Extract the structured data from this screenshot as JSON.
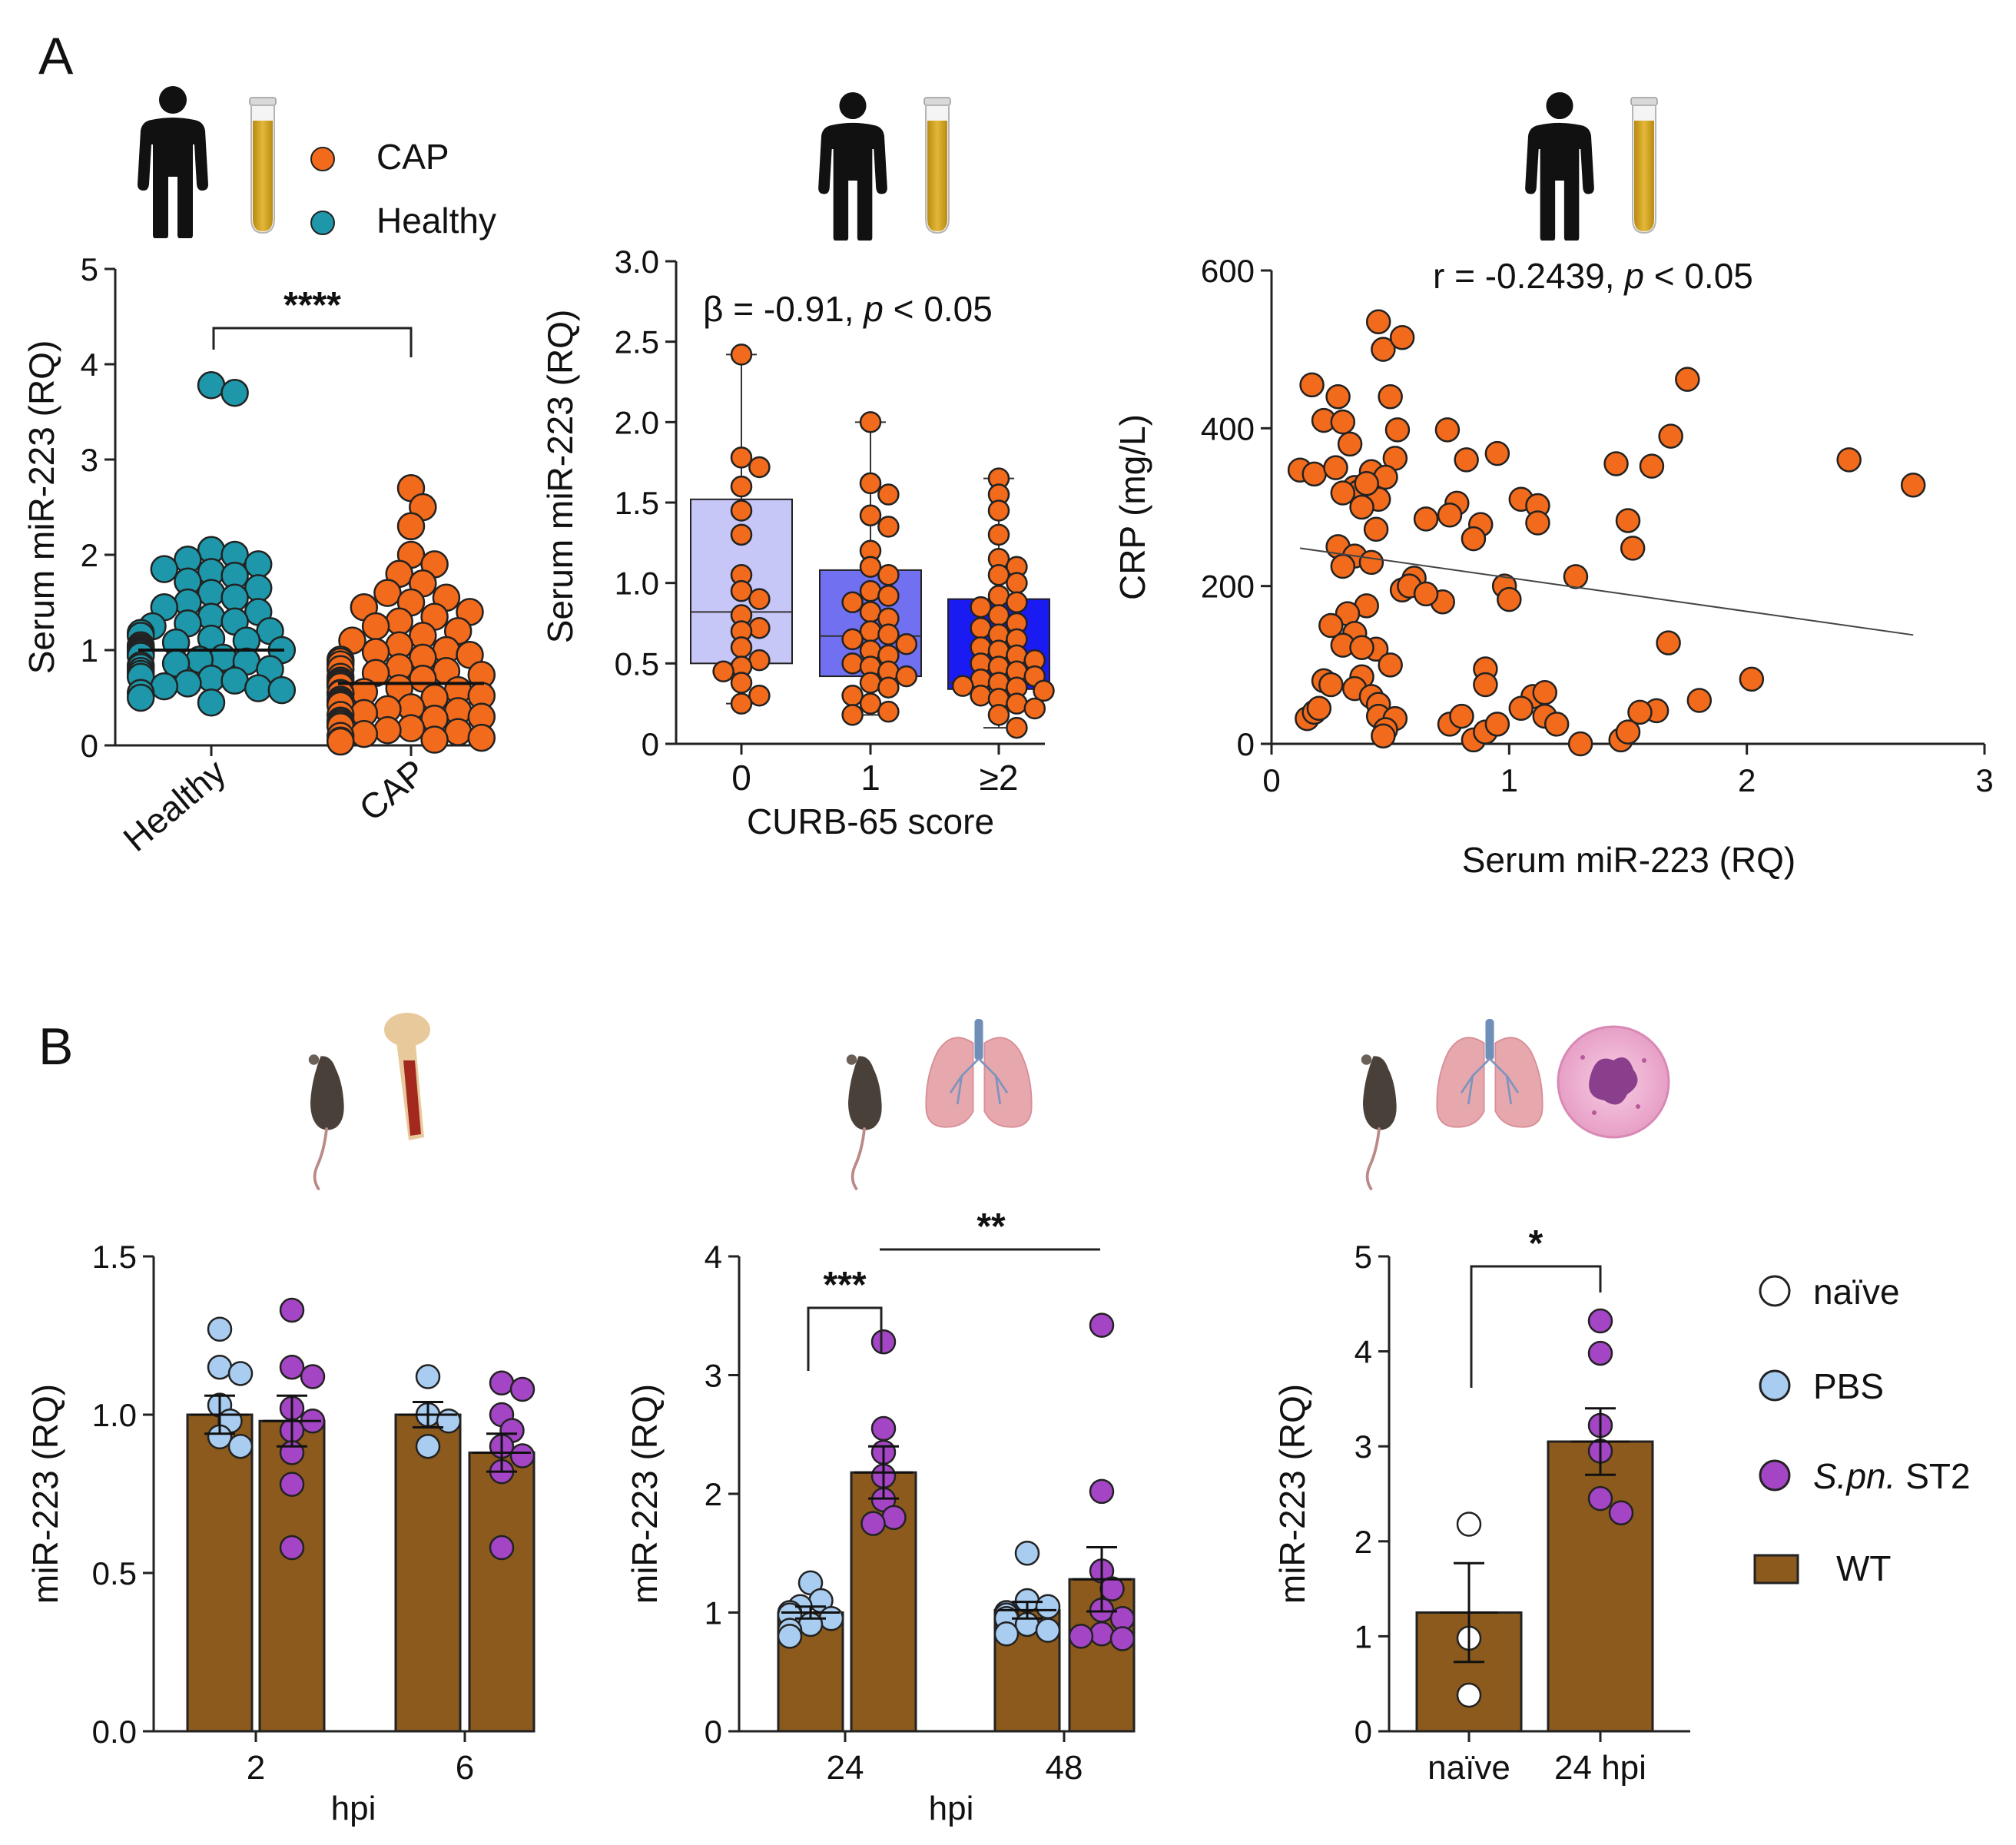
{
  "figure": {
    "panel_a_letter": "A",
    "panel_b_letter": "B",
    "legend_a": {
      "items": [
        {
          "label": "CAP"
        },
        {
          "label": "Healthy"
        }
      ]
    },
    "legend_b": {
      "items": [
        {
          "label": "naïve",
          "color": "#ffffff"
        },
        {
          "label": "PBS",
          "color": "#a9cdf0"
        },
        {
          "label_italic": "S.pn.",
          "label_rest": " ST2",
          "color": "#a445c6"
        },
        {
          "label": "WT",
          "color": "#8b5a1c"
        }
      ]
    }
  },
  "colors": {
    "cap": "#f26a1b",
    "healthy": "#1d97a9",
    "pbs": "#a9cdf0",
    "spn": "#a445c6",
    "naive": "#ffffff",
    "wt": "#8b5a1c",
    "box0": "#c6c6f7",
    "box1": "#7070f0",
    "box2": "#1a1af2"
  },
  "chart_data": [
    {
      "id": "a1",
      "type": "scatter",
      "ylabel": "Serum miR-223 (RQ)",
      "xlabel": "",
      "ylim": [
        0,
        5
      ],
      "yticks": [
        "0",
        "1",
        "2",
        "3",
        "4",
        "5"
      ],
      "categories": [
        "Healthy",
        "CAP"
      ],
      "significance": "****",
      "series": [
        {
          "name": "Healthy",
          "median": 1.0,
          "values": [
            3.78,
            3.7,
            2.05,
            2.0,
            1.95,
            1.9,
            1.85,
            1.82,
            1.78,
            1.72,
            1.65,
            1.6,
            1.55,
            1.5,
            1.45,
            1.4,
            1.35,
            1.3,
            1.28,
            1.25,
            1.2,
            1.18,
            1.15,
            1.12,
            1.1,
            1.08,
            1.05,
            1.03,
            1.02,
            1.0,
            1.0,
            0.99,
            0.98,
            0.97,
            0.95,
            0.94,
            0.92,
            0.9,
            0.88,
            0.86,
            0.84,
            0.82,
            0.8,
            0.78,
            0.75,
            0.72,
            0.7,
            0.68,
            0.65,
            0.62,
            0.6,
            0.58,
            0.55,
            0.5,
            0.45
          ]
        },
        {
          "name": "CAP",
          "median": 0.65,
          "values": [
            2.7,
            2.5,
            2.3,
            2.0,
            1.9,
            1.8,
            1.7,
            1.6,
            1.55,
            1.5,
            1.45,
            1.4,
            1.35,
            1.3,
            1.25,
            1.2,
            1.15,
            1.1,
            1.05,
            1.0,
            0.98,
            0.95,
            0.92,
            0.9,
            0.88,
            0.85,
            0.82,
            0.8,
            0.78,
            0.76,
            0.74,
            0.72,
            0.7,
            0.68,
            0.66,
            0.65,
            0.64,
            0.62,
            0.6,
            0.58,
            0.56,
            0.55,
            0.54,
            0.52,
            0.5,
            0.48,
            0.46,
            0.45,
            0.44,
            0.42,
            0.4,
            0.38,
            0.36,
            0.34,
            0.32,
            0.3,
            0.28,
            0.26,
            0.24,
            0.22,
            0.2,
            0.18,
            0.16,
            0.14,
            0.12,
            0.1,
            0.08,
            0.06,
            0.05,
            0.04
          ]
        }
      ]
    },
    {
      "id": "a2",
      "type": "box",
      "ylabel": "Serum miR-223 (RQ)",
      "xlabel": "CURB-65 score",
      "ylim": [
        0,
        3.0
      ],
      "yticks": [
        "0",
        "0.5",
        "1.0",
        "1.5",
        "2.0",
        "2.5",
        "3.0"
      ],
      "categories": [
        "0",
        "1",
        "≥2"
      ],
      "annotation": {
        "greek": "β",
        "text1": " = -0.91, ",
        "italic": "p",
        "text2": " < 0.05"
      },
      "boxes": [
        {
          "min": 0.25,
          "q1": 0.5,
          "median": 0.82,
          "q3": 1.52,
          "max": 2.42,
          "points": [
            2.42,
            1.78,
            1.72,
            1.6,
            1.45,
            1.3,
            1.05,
            0.95,
            0.9,
            0.8,
            0.72,
            0.7,
            0.6,
            0.52,
            0.48,
            0.45,
            0.38,
            0.3,
            0.25
          ]
        },
        {
          "min": 0.18,
          "q1": 0.42,
          "median": 0.67,
          "q3": 1.08,
          "max": 2.0,
          "points": [
            2.0,
            1.62,
            1.55,
            1.42,
            1.35,
            1.2,
            1.1,
            1.05,
            0.95,
            0.92,
            0.88,
            0.82,
            0.78,
            0.7,
            0.68,
            0.65,
            0.62,
            0.58,
            0.55,
            0.5,
            0.48,
            0.45,
            0.42,
            0.38,
            0.35,
            0.3,
            0.25,
            0.2,
            0.18
          ]
        },
        {
          "min": 0.1,
          "q1": 0.34,
          "median": 0.38,
          "q3": 0.9,
          "max": 1.65,
          "points": [
            1.65,
            1.55,
            1.45,
            1.3,
            1.15,
            1.1,
            1.05,
            1.0,
            0.92,
            0.88,
            0.85,
            0.8,
            0.75,
            0.72,
            0.68,
            0.65,
            0.6,
            0.58,
            0.55,
            0.52,
            0.5,
            0.48,
            0.45,
            0.42,
            0.4,
            0.38,
            0.36,
            0.35,
            0.33,
            0.3,
            0.28,
            0.25,
            0.22,
            0.18,
            0.1
          ]
        }
      ]
    },
    {
      "id": "a3",
      "type": "scatter",
      "ylabel": "CRP (mg/L)",
      "xlabel": "Serum miR-223 (RQ)",
      "xlim": [
        0,
        3
      ],
      "ylim": [
        0,
        600
      ],
      "xticks": [
        "0",
        "1",
        "2",
        "3"
      ],
      "yticks": [
        "0",
        "200",
        "400",
        "600"
      ],
      "annotation": {
        "text1": "r = -0.2439, ",
        "italic": "p",
        "text2": " < 0.05"
      },
      "regression": {
        "x": [
          0.12,
          2.7
        ],
        "y": [
          248,
          138
        ]
      },
      "points": [
        [
          0.45,
          535
        ],
        [
          0.47,
          500
        ],
        [
          0.55,
          515
        ],
        [
          0.17,
          455
        ],
        [
          0.28,
          440
        ],
        [
          0.5,
          440
        ],
        [
          0.22,
          410
        ],
        [
          0.3,
          408
        ],
        [
          0.53,
          398
        ],
        [
          0.33,
          380
        ],
        [
          0.74,
          398
        ],
        [
          0.12,
          347
        ],
        [
          0.18,
          342
        ],
        [
          0.27,
          350
        ],
        [
          0.42,
          345
        ],
        [
          0.52,
          362
        ],
        [
          0.48,
          338
        ],
        [
          0.35,
          325
        ],
        [
          0.37,
          320
        ],
        [
          0.45,
          310
        ],
        [
          0.4,
          330
        ],
        [
          0.82,
          360
        ],
        [
          0.95,
          368
        ],
        [
          1.75,
          462
        ],
        [
          1.68,
          390
        ],
        [
          1.6,
          352
        ],
        [
          1.45,
          355
        ],
        [
          2.43,
          360
        ],
        [
          2.7,
          328
        ],
        [
          0.3,
          318
        ],
        [
          0.38,
          300
        ],
        [
          0.65,
          285
        ],
        [
          0.78,
          305
        ],
        [
          0.75,
          290
        ],
        [
          0.88,
          278
        ],
        [
          0.85,
          260
        ],
        [
          1.05,
          310
        ],
        [
          1.12,
          302
        ],
        [
          1.12,
          280
        ],
        [
          0.44,
          272
        ],
        [
          1.5,
          283
        ],
        [
          1.52,
          248
        ],
        [
          0.28,
          250
        ],
        [
          0.35,
          238
        ],
        [
          0.42,
          230
        ],
        [
          0.3,
          225
        ],
        [
          1.28,
          212
        ],
        [
          0.6,
          210
        ],
        [
          0.55,
          195
        ],
        [
          0.58,
          200
        ],
        [
          0.72,
          180
        ],
        [
          0.65,
          190
        ],
        [
          0.98,
          200
        ],
        [
          1.0,
          183
        ],
        [
          0.4,
          175
        ],
        [
          0.32,
          165
        ],
        [
          0.25,
          150
        ],
        [
          0.35,
          140
        ],
        [
          0.44,
          120
        ],
        [
          1.67,
          128
        ],
        [
          0.3,
          125
        ],
        [
          0.38,
          122
        ],
        [
          0.5,
          100
        ],
        [
          0.9,
          95
        ],
        [
          0.38,
          85
        ],
        [
          0.22,
          80
        ],
        [
          0.25,
          75
        ],
        [
          0.35,
          70
        ],
        [
          0.42,
          60
        ],
        [
          0.45,
          50
        ],
        [
          0.9,
          75
        ],
        [
          1.1,
          60
        ],
        [
          1.15,
          65
        ],
        [
          1.05,
          45
        ],
        [
          2.02,
          82
        ],
        [
          1.8,
          55
        ],
        [
          1.62,
          42
        ],
        [
          1.55,
          40
        ],
        [
          0.15,
          32
        ],
        [
          0.18,
          40
        ],
        [
          0.2,
          45
        ],
        [
          0.45,
          35
        ],
        [
          0.52,
          32
        ],
        [
          0.48,
          18
        ],
        [
          0.47,
          10
        ],
        [
          0.75,
          25
        ],
        [
          0.8,
          35
        ],
        [
          0.85,
          5
        ],
        [
          0.9,
          15
        ],
        [
          0.95,
          25
        ],
        [
          1.15,
          35
        ],
        [
          1.2,
          25
        ],
        [
          1.3,
          0
        ],
        [
          1.47,
          5
        ],
        [
          1.5,
          15
        ]
      ]
    },
    {
      "id": "b1",
      "type": "bar",
      "ylabel": "miR-223 (RQ)",
      "xlabel": "hpi",
      "ylim": [
        0,
        1.5
      ],
      "yticks": [
        "0.0",
        "0.5",
        "1.0",
        "1.5"
      ],
      "categories": [
        "2",
        "6"
      ],
      "series": [
        {
          "name": "PBS",
          "means": [
            1.0,
            1.0
          ],
          "sem": [
            0.06,
            0.04
          ],
          "points": [
            [
              1.27,
              1.15,
              1.13,
              1.03,
              0.98,
              0.93,
              0.9
            ],
            [
              1.12,
              1.0,
              0.98,
              0.9
            ]
          ]
        },
        {
          "name": "S.pn. ST2",
          "means": [
            0.98,
            0.88
          ],
          "sem": [
            0.08,
            0.06
          ],
          "points": [
            [
              1.33,
              1.15,
              1.12,
              1.02,
              0.98,
              0.95,
              0.88,
              0.78,
              0.58
            ],
            [
              1.1,
              1.08,
              1.0,
              0.95,
              0.9,
              0.87,
              0.82,
              0.58
            ]
          ]
        }
      ]
    },
    {
      "id": "b2",
      "type": "bar",
      "ylabel": "miR-223 (RQ)",
      "xlabel": "hpi",
      "ylim": [
        0,
        4
      ],
      "yticks": [
        "0",
        "1",
        "2",
        "3",
        "4"
      ],
      "categories": [
        "24",
        "48"
      ],
      "sig_inner": "***",
      "sig_outer": "**",
      "series": [
        {
          "name": "PBS",
          "means": [
            1.0,
            1.02
          ],
          "sem": [
            0.05,
            0.07
          ],
          "points": [
            [
              1.25,
              1.1,
              1.05,
              1.0,
              0.98,
              0.95,
              0.9,
              0.85,
              0.8
            ],
            [
              1.5,
              1.1,
              1.05,
              1.0,
              0.98,
              0.95,
              0.9,
              0.85,
              0.82
            ]
          ]
        },
        {
          "name": "S.pn. ST2",
          "means": [
            2.18,
            1.28
          ],
          "sem": [
            0.22,
            0.27
          ],
          "points": [
            [
              3.28,
              2.55,
              2.35,
              2.15,
              1.95,
              1.8,
              1.75
            ],
            [
              3.42,
              2.02,
              1.35,
              1.2,
              1.02,
              0.95,
              0.82,
              0.8,
              0.78
            ]
          ]
        }
      ]
    },
    {
      "id": "b3",
      "type": "bar",
      "ylabel": "miR-223 (RQ)",
      "xlabel": "",
      "ylim": [
        0,
        5
      ],
      "yticks": [
        "0",
        "1",
        "2",
        "3",
        "4",
        "5"
      ],
      "categories": [
        "naïve",
        "24 hpi"
      ],
      "significance": "*",
      "series": [
        {
          "name": "naïve",
          "means": [
            1.25
          ],
          "sem": [
            0.52
          ],
          "points": [
            [
              2.18,
              0.98,
              0.38
            ]
          ]
        },
        {
          "name": "S.pn. ST2",
          "means": [
            3.05
          ],
          "sem": [
            0.35
          ],
          "points": [
            [
              4.32,
              3.98,
              3.22,
              2.95,
              2.45,
              2.3
            ]
          ]
        }
      ]
    }
  ]
}
